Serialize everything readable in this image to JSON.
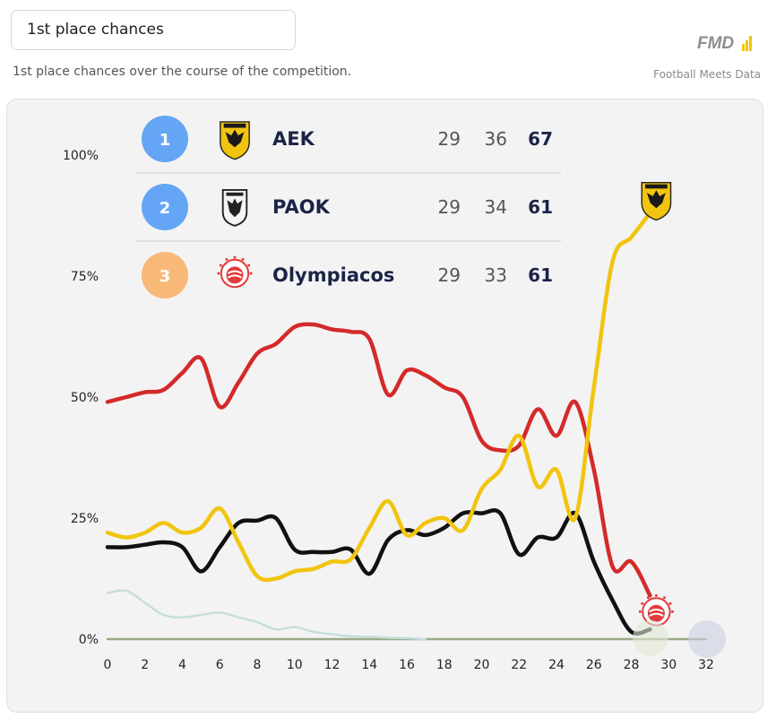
{
  "header": {
    "title": "1st place chances",
    "subtitle": "1st place chances over the course of the competition.",
    "brand_logo": "FMD",
    "brand_name": "Football Meets Data"
  },
  "standings": [
    {
      "rank": "1",
      "team": "AEK",
      "played": "29",
      "goal_diff": "36",
      "points": "67",
      "rank_color": "#64a6f5",
      "crest_icon": "aek-crest-icon"
    },
    {
      "rank": "2",
      "team": "PAOK",
      "played": "29",
      "goal_diff": "34",
      "points": "61",
      "rank_color": "#64a6f5",
      "crest_icon": "paok-crest-icon"
    },
    {
      "rank": "3",
      "team": "Olympiacos",
      "played": "29",
      "goal_diff": "33",
      "points": "61",
      "rank_color": "#f8b878",
      "crest_icon": "olympiacos-crest-icon"
    }
  ],
  "chart_data": {
    "type": "line",
    "title": "1st place chances",
    "xlabel": "",
    "ylabel": "",
    "xlim": [
      0,
      32
    ],
    "ylim": [
      0,
      100
    ],
    "x_ticks": [
      "0",
      "2",
      "4",
      "6",
      "8",
      "10",
      "12",
      "14",
      "16",
      "18",
      "20",
      "22",
      "24",
      "26",
      "28",
      "30",
      "32"
    ],
    "y_ticks": [
      {
        "value": 0,
        "label": "0%"
      },
      {
        "value": 25,
        "label": "25%"
      },
      {
        "value": 50,
        "label": "50%"
      },
      {
        "value": 75,
        "label": "75%"
      },
      {
        "value": 100,
        "label": "100%"
      }
    ],
    "grid": false,
    "series": [
      {
        "name": "Olympiacos",
        "color": "#d42a2a",
        "x": [
          0,
          1,
          2,
          3,
          4,
          5,
          6,
          7,
          8,
          9,
          10,
          11,
          12,
          13,
          14,
          15,
          16,
          17,
          18,
          19,
          20,
          21,
          22,
          23,
          24,
          25,
          26,
          27,
          28,
          29
        ],
        "y": [
          49,
          50,
          51,
          51.5,
          55,
          58,
          48,
          53,
          59,
          61,
          64.5,
          65,
          64,
          63.5,
          62,
          50.5,
          55.5,
          54.5,
          52,
          50,
          41,
          39,
          40,
          47.5,
          42,
          49,
          35,
          15,
          16,
          9
        ]
      },
      {
        "name": "AEK",
        "color": "#f1c40f",
        "x": [
          0,
          1,
          2,
          3,
          4,
          5,
          6,
          7,
          8,
          9,
          10,
          11,
          12,
          13,
          14,
          15,
          16,
          17,
          18,
          19,
          20,
          21,
          22,
          23,
          24,
          25,
          26,
          27,
          28,
          29
        ],
        "y": [
          22,
          21,
          22,
          24,
          22,
          23,
          27,
          20,
          13,
          12.5,
          14,
          14.5,
          16,
          16.5,
          23,
          28.5,
          21.5,
          24,
          25,
          22.5,
          31,
          35,
          42,
          31.5,
          35,
          25,
          52,
          78,
          83,
          88
        ]
      },
      {
        "name": "PAOK",
        "color": "#111111",
        "x": [
          0,
          1,
          2,
          3,
          4,
          5,
          6,
          7,
          8,
          9,
          10,
          11,
          12,
          13,
          14,
          15,
          16,
          17,
          18,
          19,
          20,
          21,
          22,
          23,
          24,
          25,
          26,
          27,
          28,
          29
        ],
        "y": [
          19,
          19,
          19.5,
          20,
          19,
          14,
          19,
          24,
          24.5,
          25,
          18.5,
          18,
          18,
          18.5,
          13.5,
          20.5,
          22.5,
          21.5,
          23,
          26,
          26,
          26,
          17.5,
          21,
          21,
          26,
          16,
          8,
          1.5,
          2
        ]
      },
      {
        "name": "",
        "color": "#c6dedb",
        "x": [
          0,
          1,
          2,
          3,
          4,
          5,
          6,
          7,
          8,
          9,
          10,
          11,
          12,
          13,
          14,
          15,
          16,
          17
        ],
        "y": [
          9.5,
          10,
          7.5,
          5,
          4.5,
          5,
          5.5,
          4.5,
          3.5,
          2,
          2.5,
          1.5,
          1,
          0.6,
          0.5,
          0.3,
          0.2,
          0
        ]
      },
      {
        "name": "",
        "color": "#9aaa86",
        "x": [
          0,
          32
        ],
        "y": [
          0,
          0
        ]
      }
    ]
  }
}
